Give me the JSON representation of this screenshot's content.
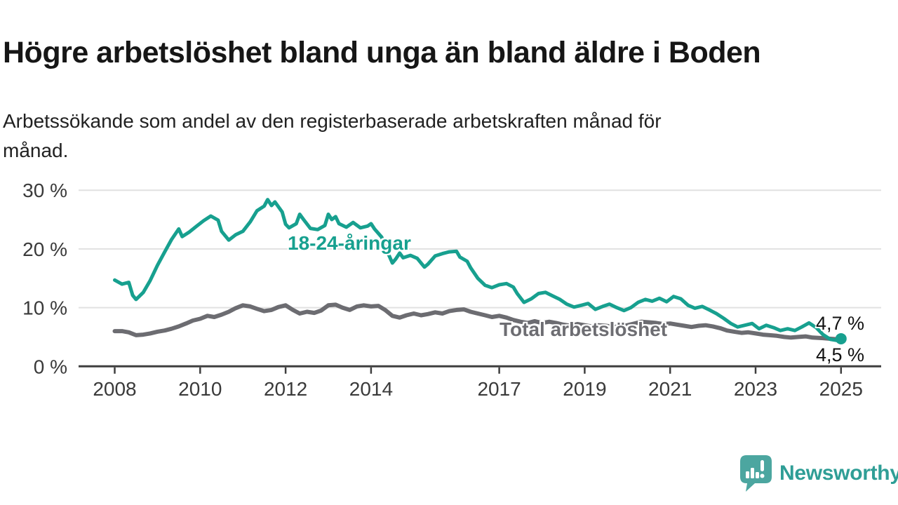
{
  "header": {
    "title": "Högre arbetslöshet bland unga än bland äldre i Boden",
    "subtitle": "Arbetssökande som andel av den registerbaserade arbetskraften månad för\nmånad."
  },
  "colors": {
    "youth_line": "#17a08f",
    "total_line": "#6c6c71",
    "total_label": "#6d6d72",
    "gridline": "#e1e1e1",
    "axis": "#3e3e3e",
    "tick_text": "#3a3a3a",
    "brand_teal": "#2f9e96",
    "logo_bubble": "#4ca6a0"
  },
  "chart_data": {
    "type": "line",
    "unit": "%",
    "title": "Högre arbetslöshet bland unga än bland äldre i Boden",
    "xlabel": "",
    "ylabel": "",
    "ylim": [
      0,
      31
    ],
    "x_range": [
      2008,
      2025.1
    ],
    "grid": "horizontal",
    "y_ticks": [
      {
        "value": 30,
        "label": "30 %"
      },
      {
        "value": 20,
        "label": "20 %"
      },
      {
        "value": 10,
        "label": "10 %"
      },
      {
        "value": 0,
        "label": "0 %"
      }
    ],
    "x_ticks": [
      {
        "year": 2008,
        "label": "2008"
      },
      {
        "year": 2010,
        "label": "2010"
      },
      {
        "year": 2012,
        "label": "2012"
      },
      {
        "year": 2014,
        "label": "2014"
      },
      {
        "year": 2017,
        "label": "2017"
      },
      {
        "year": 2019,
        "label": "2019"
      },
      {
        "year": 2021,
        "label": "2021"
      },
      {
        "year": 2023,
        "label": "2023"
      },
      {
        "year": 2025,
        "label": "2025"
      }
    ],
    "series": [
      {
        "name": "18-24-åringar",
        "color": "#17a08f",
        "stroke_width": 5,
        "end_dot": true,
        "end_label": "4,7 %",
        "points": [
          [
            2008.0,
            14.7
          ],
          [
            2008.17,
            14.0
          ],
          [
            2008.33,
            14.3
          ],
          [
            2008.42,
            12.1
          ],
          [
            2008.5,
            11.4
          ],
          [
            2008.67,
            12.6
          ],
          [
            2008.83,
            14.6
          ],
          [
            2009.0,
            17.2
          ],
          [
            2009.17,
            19.5
          ],
          [
            2009.33,
            21.6
          ],
          [
            2009.5,
            23.4
          ],
          [
            2009.58,
            22.1
          ],
          [
            2009.75,
            22.9
          ],
          [
            2009.92,
            23.9
          ],
          [
            2010.08,
            24.8
          ],
          [
            2010.25,
            25.6
          ],
          [
            2010.42,
            24.9
          ],
          [
            2010.5,
            23.0
          ],
          [
            2010.67,
            21.5
          ],
          [
            2010.83,
            22.4
          ],
          [
            2011.0,
            23.0
          ],
          [
            2011.17,
            24.6
          ],
          [
            2011.33,
            26.5
          ],
          [
            2011.5,
            27.3
          ],
          [
            2011.58,
            28.4
          ],
          [
            2011.67,
            27.4
          ],
          [
            2011.75,
            28.0
          ],
          [
            2011.92,
            26.3
          ],
          [
            2012.0,
            24.2
          ],
          [
            2012.08,
            23.6
          ],
          [
            2012.25,
            24.3
          ],
          [
            2012.33,
            25.9
          ],
          [
            2012.42,
            25.0
          ],
          [
            2012.58,
            23.5
          ],
          [
            2012.75,
            23.3
          ],
          [
            2012.92,
            24.0
          ],
          [
            2013.0,
            25.9
          ],
          [
            2013.08,
            25.0
          ],
          [
            2013.17,
            25.5
          ],
          [
            2013.25,
            24.3
          ],
          [
            2013.42,
            23.7
          ],
          [
            2013.58,
            24.5
          ],
          [
            2013.75,
            23.6
          ],
          [
            2013.92,
            23.9
          ],
          [
            2014.0,
            24.3
          ],
          [
            2014.08,
            23.4
          ],
          [
            2014.25,
            22.0
          ],
          [
            2014.33,
            20.2
          ],
          [
            2014.42,
            18.9
          ],
          [
            2014.5,
            17.6
          ],
          [
            2014.58,
            18.3
          ],
          [
            2014.67,
            19.3
          ],
          [
            2014.75,
            18.5
          ],
          [
            2014.92,
            18.9
          ],
          [
            2015.08,
            18.4
          ],
          [
            2015.25,
            16.9
          ],
          [
            2015.33,
            17.4
          ],
          [
            2015.5,
            18.8
          ],
          [
            2015.67,
            19.2
          ],
          [
            2015.83,
            19.5
          ],
          [
            2016.0,
            19.6
          ],
          [
            2016.08,
            18.6
          ],
          [
            2016.25,
            17.9
          ],
          [
            2016.33,
            16.8
          ],
          [
            2016.5,
            15.0
          ],
          [
            2016.67,
            13.8
          ],
          [
            2016.83,
            13.4
          ],
          [
            2017.0,
            13.9
          ],
          [
            2017.17,
            14.1
          ],
          [
            2017.33,
            13.5
          ],
          [
            2017.42,
            12.4
          ],
          [
            2017.58,
            10.9
          ],
          [
            2017.75,
            11.5
          ],
          [
            2017.92,
            12.4
          ],
          [
            2018.08,
            12.6
          ],
          [
            2018.25,
            12.0
          ],
          [
            2018.42,
            11.4
          ],
          [
            2018.58,
            10.6
          ],
          [
            2018.75,
            10.1
          ],
          [
            2018.92,
            10.4
          ],
          [
            2019.08,
            10.7
          ],
          [
            2019.25,
            9.7
          ],
          [
            2019.42,
            10.2
          ],
          [
            2019.58,
            10.6
          ],
          [
            2019.75,
            10.0
          ],
          [
            2019.92,
            9.5
          ],
          [
            2020.08,
            10.0
          ],
          [
            2020.25,
            10.9
          ],
          [
            2020.42,
            11.4
          ],
          [
            2020.58,
            11.1
          ],
          [
            2020.75,
            11.6
          ],
          [
            2020.92,
            11.0
          ],
          [
            2021.08,
            11.9
          ],
          [
            2021.25,
            11.5
          ],
          [
            2021.42,
            10.4
          ],
          [
            2021.58,
            9.9
          ],
          [
            2021.75,
            10.2
          ],
          [
            2021.92,
            9.6
          ],
          [
            2022.08,
            9.0
          ],
          [
            2022.25,
            8.2
          ],
          [
            2022.42,
            7.3
          ],
          [
            2022.58,
            6.7
          ],
          [
            2022.75,
            7.0
          ],
          [
            2022.92,
            7.3
          ],
          [
            2023.08,
            6.4
          ],
          [
            2023.25,
            7.0
          ],
          [
            2023.42,
            6.6
          ],
          [
            2023.58,
            6.1
          ],
          [
            2023.75,
            6.4
          ],
          [
            2023.92,
            6.1
          ],
          [
            2024.08,
            6.7
          ],
          [
            2024.25,
            7.4
          ],
          [
            2024.42,
            6.6
          ],
          [
            2024.58,
            5.4
          ],
          [
            2024.75,
            4.6
          ],
          [
            2024.92,
            4.4
          ],
          [
            2025.0,
            4.7
          ]
        ]
      },
      {
        "name": "Total arbetslöshet",
        "color": "#6c6c71",
        "stroke_width": 6,
        "end_dot": false,
        "end_label": "4,5 %",
        "points": [
          [
            2008.0,
            6.0
          ],
          [
            2008.17,
            6.0
          ],
          [
            2008.33,
            5.8
          ],
          [
            2008.5,
            5.3
          ],
          [
            2008.67,
            5.4
          ],
          [
            2008.83,
            5.6
          ],
          [
            2009.0,
            5.9
          ],
          [
            2009.17,
            6.1
          ],
          [
            2009.33,
            6.4
          ],
          [
            2009.5,
            6.8
          ],
          [
            2009.67,
            7.3
          ],
          [
            2009.83,
            7.8
          ],
          [
            2010.0,
            8.1
          ],
          [
            2010.17,
            8.6
          ],
          [
            2010.33,
            8.4
          ],
          [
            2010.5,
            8.8
          ],
          [
            2010.67,
            9.3
          ],
          [
            2010.83,
            9.9
          ],
          [
            2011.0,
            10.4
          ],
          [
            2011.17,
            10.2
          ],
          [
            2011.33,
            9.8
          ],
          [
            2011.5,
            9.4
          ],
          [
            2011.67,
            9.6
          ],
          [
            2011.83,
            10.1
          ],
          [
            2012.0,
            10.4
          ],
          [
            2012.17,
            9.6
          ],
          [
            2012.33,
            9.0
          ],
          [
            2012.5,
            9.3
          ],
          [
            2012.67,
            9.1
          ],
          [
            2012.83,
            9.5
          ],
          [
            2013.0,
            10.4
          ],
          [
            2013.17,
            10.5
          ],
          [
            2013.33,
            10.0
          ],
          [
            2013.5,
            9.6
          ],
          [
            2013.67,
            10.2
          ],
          [
            2013.83,
            10.4
          ],
          [
            2014.0,
            10.2
          ],
          [
            2014.17,
            10.3
          ],
          [
            2014.33,
            9.6
          ],
          [
            2014.5,
            8.6
          ],
          [
            2014.67,
            8.3
          ],
          [
            2014.83,
            8.7
          ],
          [
            2015.0,
            9.0
          ],
          [
            2015.17,
            8.7
          ],
          [
            2015.33,
            8.9
          ],
          [
            2015.5,
            9.2
          ],
          [
            2015.67,
            9.0
          ],
          [
            2015.83,
            9.4
          ],
          [
            2016.0,
            9.6
          ],
          [
            2016.17,
            9.7
          ],
          [
            2016.33,
            9.3
          ],
          [
            2016.5,
            9.0
          ],
          [
            2016.67,
            8.7
          ],
          [
            2016.83,
            8.4
          ],
          [
            2017.0,
            8.6
          ],
          [
            2017.17,
            8.3
          ],
          [
            2017.33,
            7.9
          ],
          [
            2017.5,
            7.6
          ],
          [
            2017.67,
            7.4
          ],
          [
            2017.83,
            7.7
          ],
          [
            2018.0,
            7.4
          ],
          [
            2018.17,
            7.6
          ],
          [
            2018.33,
            7.4
          ],
          [
            2018.5,
            7.1
          ],
          [
            2018.67,
            6.9
          ],
          [
            2018.83,
            7.2
          ],
          [
            2019.0,
            7.0
          ],
          [
            2019.17,
            6.8
          ],
          [
            2019.33,
            7.0
          ],
          [
            2019.5,
            6.9
          ],
          [
            2019.67,
            6.7
          ],
          [
            2019.83,
            6.8
          ],
          [
            2020.0,
            7.0
          ],
          [
            2020.17,
            7.3
          ],
          [
            2020.33,
            7.6
          ],
          [
            2020.5,
            7.5
          ],
          [
            2020.67,
            7.4
          ],
          [
            2020.83,
            7.2
          ],
          [
            2021.0,
            7.3
          ],
          [
            2021.17,
            7.1
          ],
          [
            2021.33,
            6.9
          ],
          [
            2021.5,
            6.7
          ],
          [
            2021.67,
            6.9
          ],
          [
            2021.83,
            7.0
          ],
          [
            2022.0,
            6.8
          ],
          [
            2022.17,
            6.5
          ],
          [
            2022.33,
            6.1
          ],
          [
            2022.5,
            5.9
          ],
          [
            2022.67,
            5.7
          ],
          [
            2022.83,
            5.8
          ],
          [
            2023.0,
            5.6
          ],
          [
            2023.17,
            5.4
          ],
          [
            2023.33,
            5.3
          ],
          [
            2023.5,
            5.2
          ],
          [
            2023.67,
            5.0
          ],
          [
            2023.83,
            4.9
          ],
          [
            2024.0,
            5.0
          ],
          [
            2024.17,
            5.1
          ],
          [
            2024.33,
            4.9
          ],
          [
            2024.58,
            4.8
          ],
          [
            2024.75,
            4.7
          ],
          [
            2024.92,
            4.6
          ],
          [
            2025.0,
            4.5
          ]
        ]
      }
    ]
  },
  "footer": {
    "brand": "Newsworthy"
  }
}
